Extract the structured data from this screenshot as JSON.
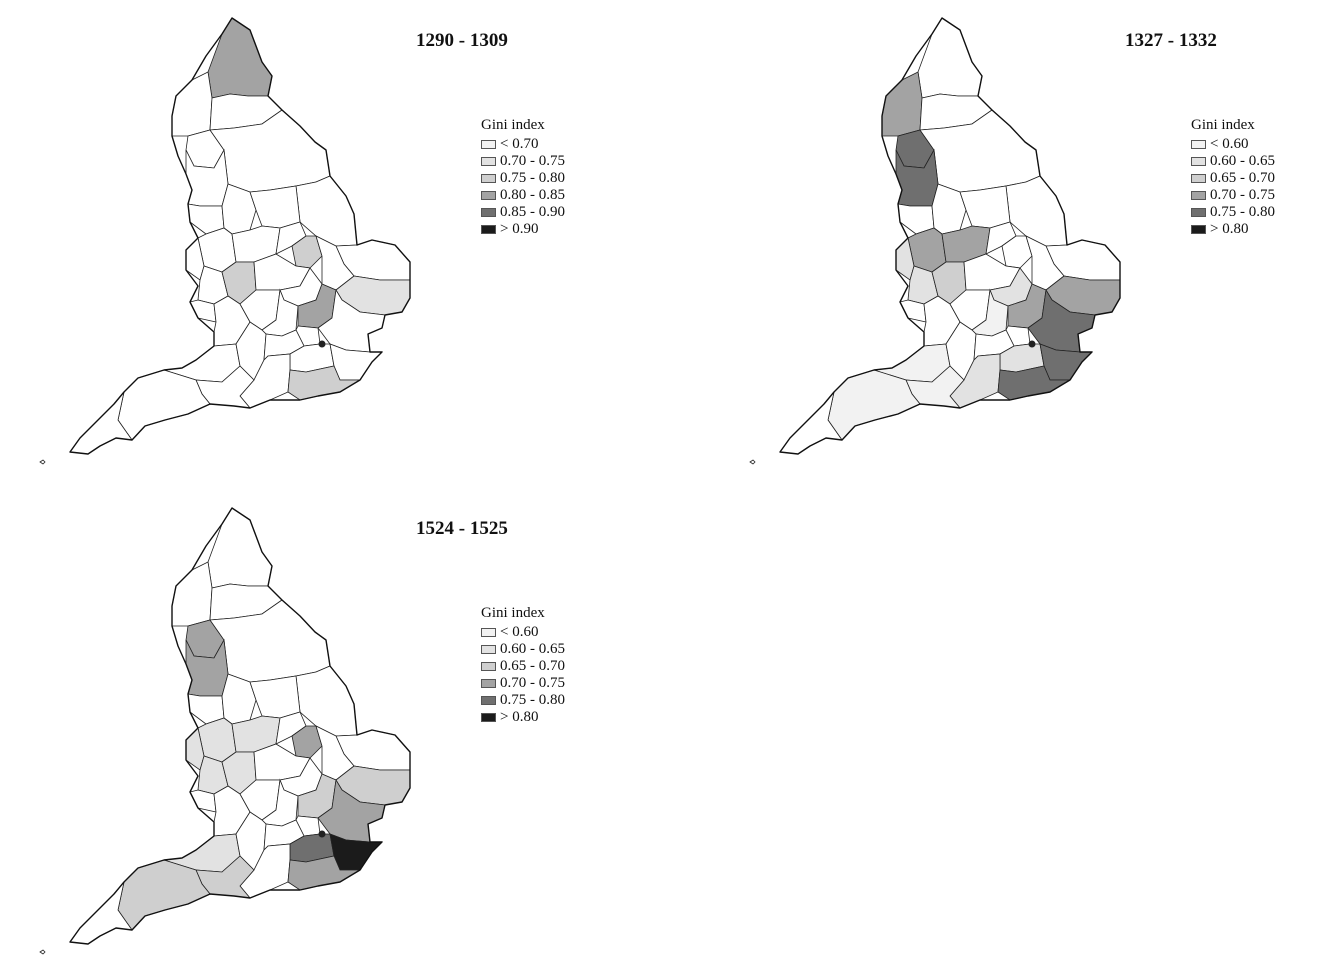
{
  "colors": {
    "c0": "#f2f2f2",
    "c1": "#e2e2e2",
    "c2": "#cfcfcf",
    "c3": "#a3a3a3",
    "c4": "#6f6f6f",
    "c5": "#1b1b1b",
    "none": "#ffffff"
  },
  "panels": [
    {
      "title": "1290 - 1309",
      "legend_title": "Gini index",
      "legend": [
        "< 0.70",
        "0.70 - 0.75",
        "0.75 - 0.80",
        "0.80 - 0.85",
        "0.85 - 0.90",
        "> 0.90"
      ],
      "shading": {
        "northumberland": 3,
        "huntingdon": 2,
        "hertford": 3,
        "warwick": 2,
        "suffolk": 1,
        "sussex": 2
      }
    },
    {
      "title": "1327 - 1332",
      "legend_title": "Gini index",
      "legend": [
        "< 0.60",
        "0.60 - 0.65",
        "0.65 - 0.70",
        "0.70 - 0.75",
        "0.75 - 0.80",
        "> 0.80"
      ],
      "shading": {
        "cumberland": 3,
        "westmorland": 4,
        "lancashire": 4,
        "stafford": 3,
        "shropshire": 1,
        "leicester": 3,
        "hertford": 3,
        "worcester": 1,
        "warwick": 2,
        "suffolk": 3,
        "essex": 4,
        "kent": 4,
        "sussex": 4,
        "surrey": 1,
        "hampshire": 1,
        "devon": 0,
        "somerset": 0,
        "dorset": 0,
        "bedford": 1,
        "buckingham": 0
      }
    },
    {
      "title": "1524 - 1525",
      "legend_title": "Gini index",
      "legend": [
        "< 0.60",
        "0.60 - 0.65",
        "0.65 - 0.70",
        "0.70 - 0.75",
        "0.75 - 0.80",
        "> 0.80"
      ],
      "shading": {
        "westmorland": 3,
        "lancashire": 3,
        "stafford": 1,
        "shropshire": 1,
        "leicester": 1,
        "worcester": 1,
        "warwick": 1,
        "huntingdon": 3,
        "hertford": 2,
        "suffolk": 2,
        "essex": 3,
        "kent": 5,
        "surrey": 4,
        "sussex": 3,
        "devon": 2,
        "dorset": 2,
        "somerset": 1
      }
    }
  ]
}
